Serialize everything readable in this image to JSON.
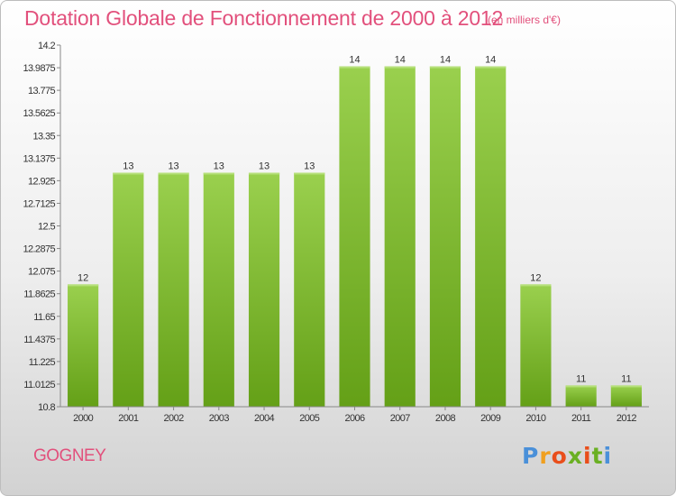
{
  "chart_data": {
    "type": "bar",
    "title": "Dotation Globale de Fonctionnement de 2000 à 2012",
    "subtitle": "(en milliers d'€)",
    "categories": [
      "2000",
      "2001",
      "2002",
      "2003",
      "2004",
      "2005",
      "2006",
      "2007",
      "2008",
      "2009",
      "2010",
      "2011",
      "2012"
    ],
    "values": [
      11.95,
      13.0,
      13.0,
      13.0,
      13.0,
      13.0,
      14.0,
      14.0,
      14.0,
      14.0,
      11.95,
      11.0,
      11.0
    ],
    "data_labels": [
      "12",
      "13",
      "13",
      "13",
      "13",
      "13",
      "14",
      "14",
      "14",
      "14",
      "12",
      "11",
      "11"
    ],
    "ylim": [
      10.8,
      14.2
    ],
    "yticks": [
      "14.2",
      "13.9875",
      "13.775",
      "13.5625",
      "13.35",
      "13.1375",
      "12.925",
      "12.7125",
      "12.5",
      "12.2875",
      "12.075",
      "11.8625",
      "11.65",
      "11.4375",
      "11.225",
      "11.0125",
      "10.8"
    ],
    "grid": false,
    "bar_color": "#8cc43c"
  },
  "commune": "GOGNEY",
  "logo": {
    "text": "Proxiti",
    "colors": [
      "#4a90d9",
      "#f0a020",
      "#e94e1b",
      "#6ab023",
      "#e94e1b",
      "#6ab023",
      "#4a90d9"
    ]
  }
}
